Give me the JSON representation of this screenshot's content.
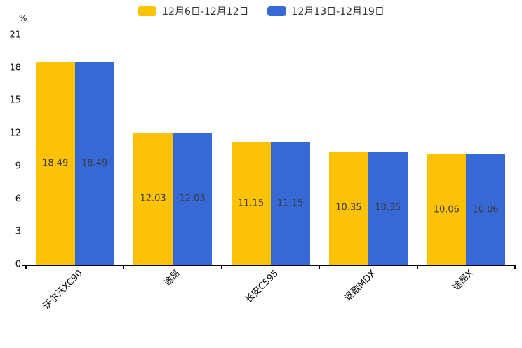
{
  "chart_data": {
    "type": "bar",
    "title": "",
    "unit": "%",
    "xlabel": "",
    "ylabel": "%",
    "categories": [
      "沃尔沃XC90",
      "途昂",
      "长安CS95",
      "讴歌MDX",
      "途昂X"
    ],
    "series": [
      {
        "name": "12月6日-12月12日",
        "color": "#FCC306",
        "values": [
          18.49,
          12.03,
          11.15,
          10.35,
          10.06
        ]
      },
      {
        "name": "12月13日-12月19日",
        "color": "#3769D6",
        "values": [
          18.49,
          12.03,
          11.15,
          10.35,
          10.06
        ]
      }
    ],
    "ylim": [
      0,
      21
    ],
    "yticks": [
      0,
      3,
      6,
      9,
      12,
      15,
      18,
      21
    ],
    "grid": false,
    "legend_position": "top",
    "value_labels": "inside-center"
  },
  "colors": {
    "axis": "#000000",
    "value_label": "#3b3b3b",
    "tick_label": "#111111",
    "legend_text": "#333333"
  }
}
